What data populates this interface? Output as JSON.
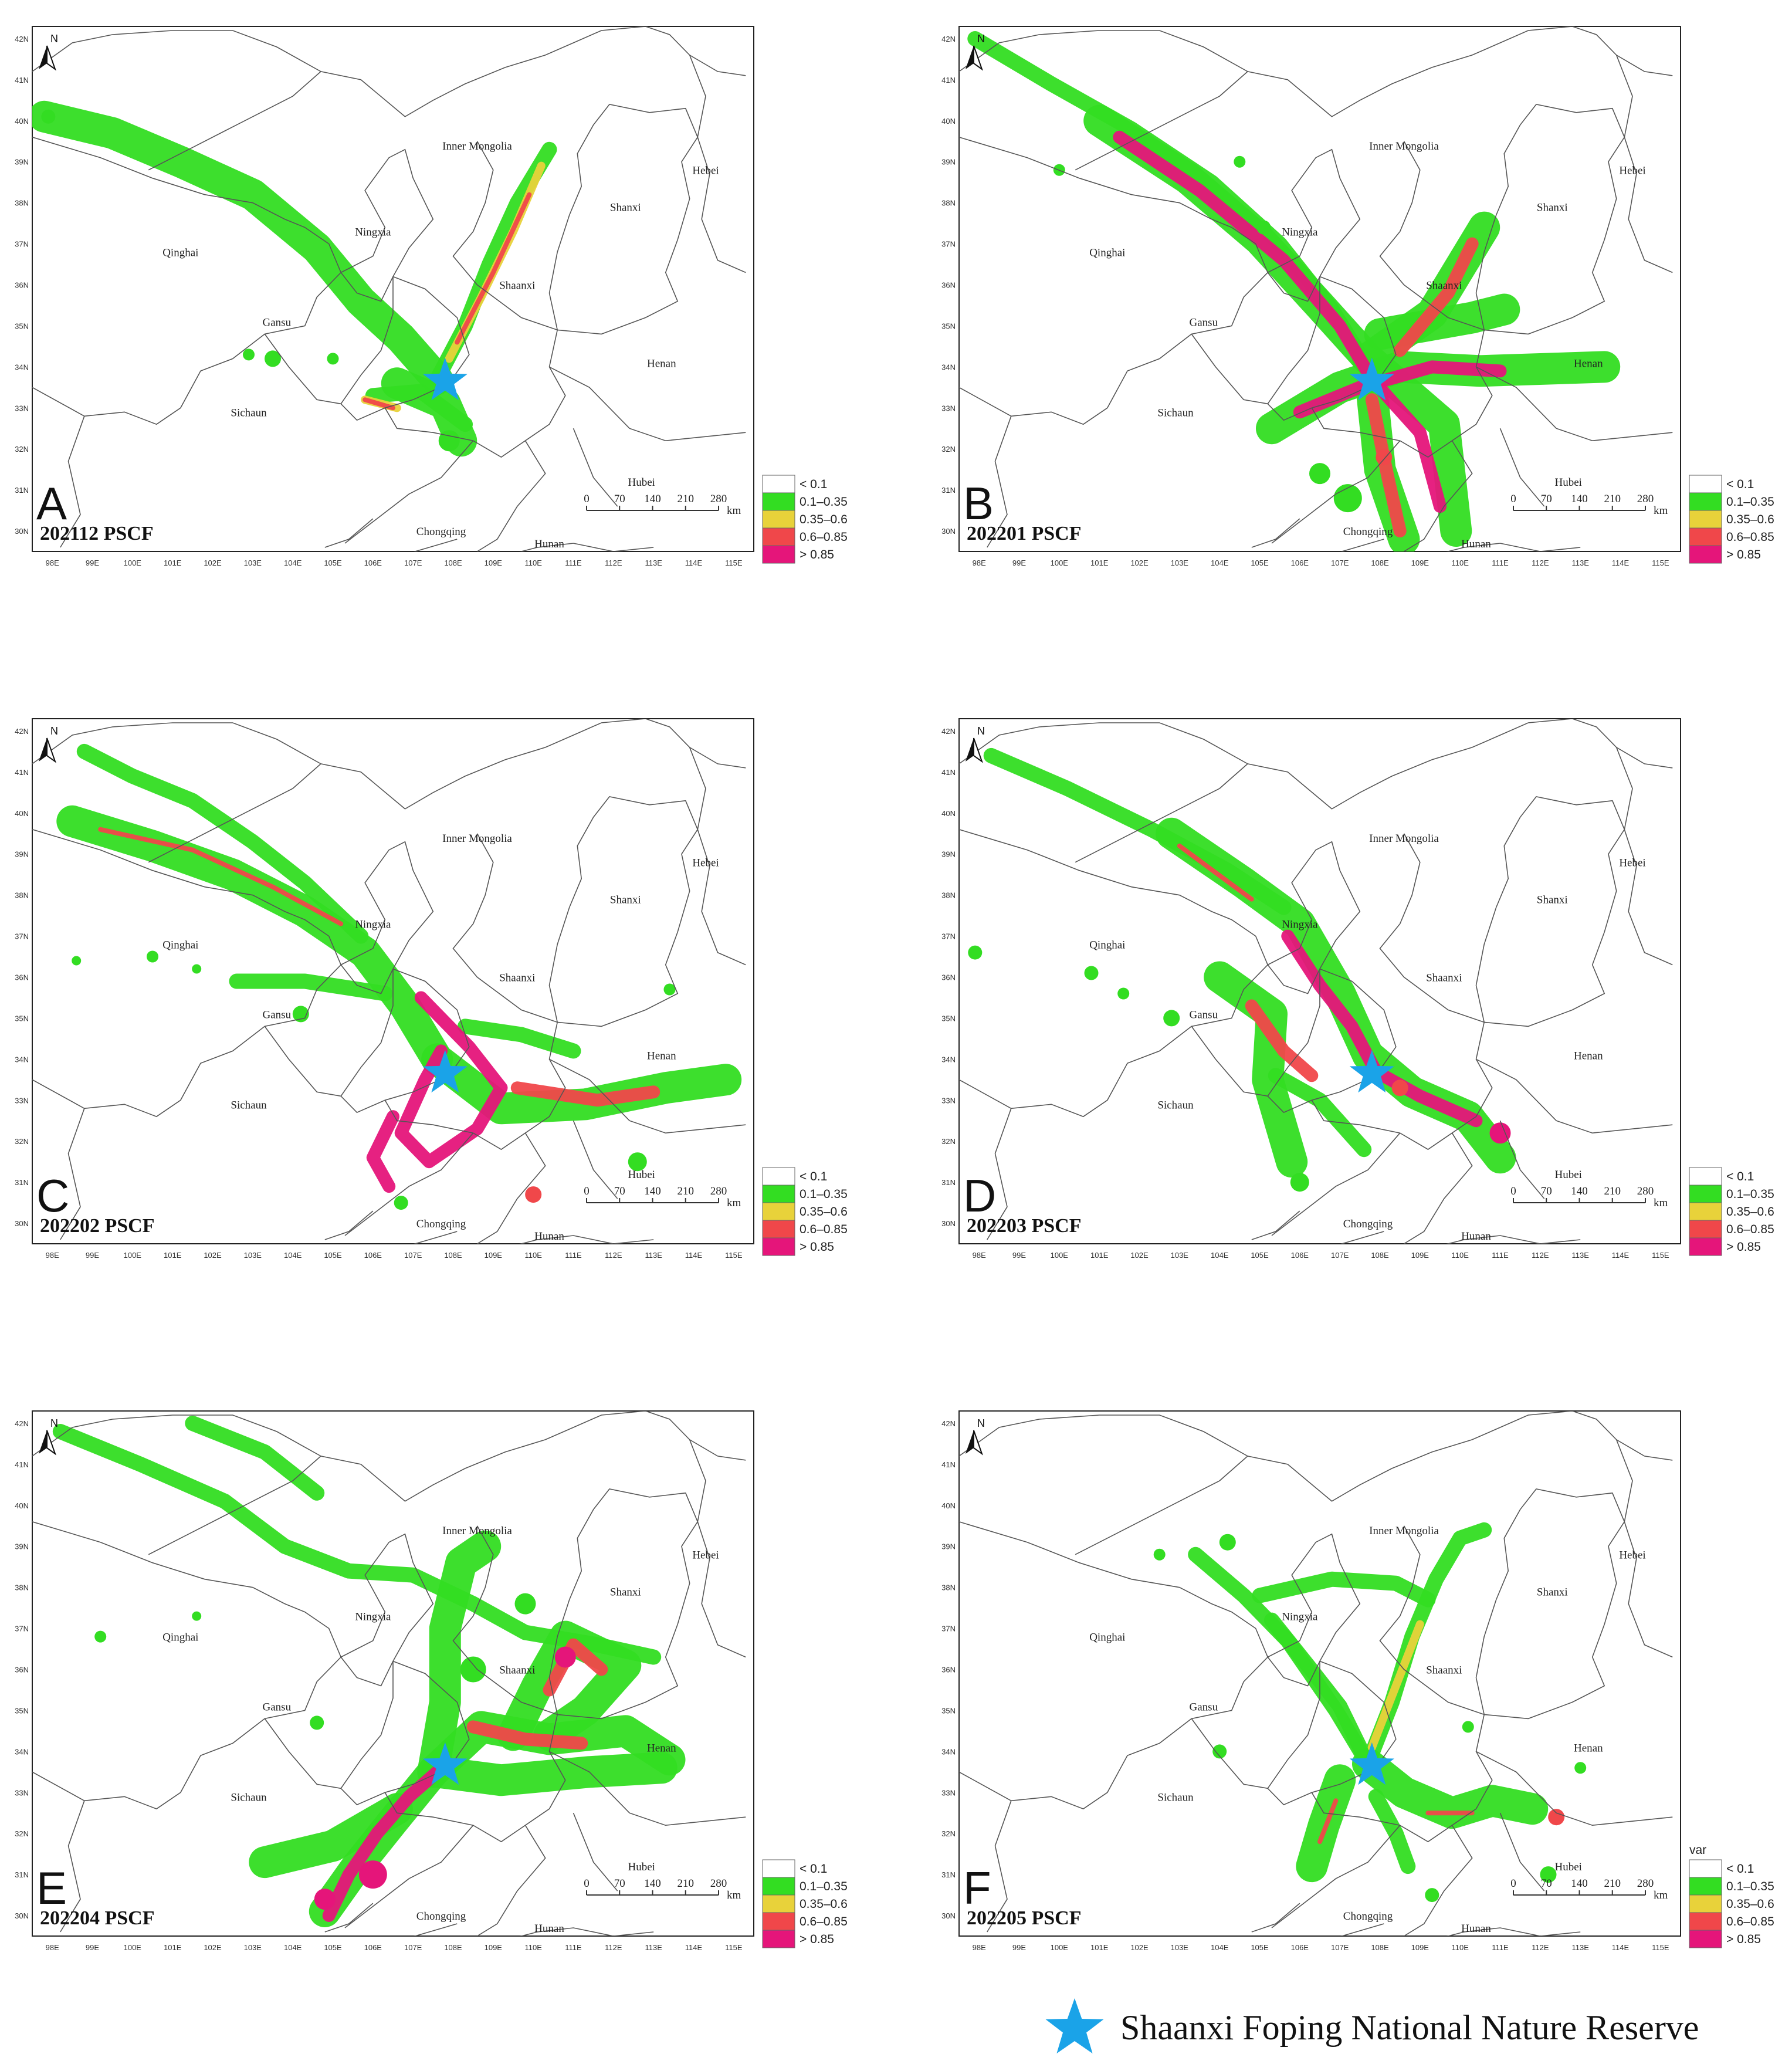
{
  "lon_ticks": [
    "98E",
    "99E",
    "100E",
    "101E",
    "102E",
    "103E",
    "104E",
    "105E",
    "106E",
    "107E",
    "108E",
    "109E",
    "110E",
    "111E",
    "112E",
    "113E",
    "114E",
    "115E"
  ],
  "lat_ticks": [
    "42N",
    "41N",
    "40N",
    "39N",
    "38N",
    "37N",
    "36N",
    "35N",
    "34N",
    "33N",
    "32N",
    "31N",
    "30N"
  ],
  "regions": {
    "inner_mongolia": "Inner Mongolia",
    "hebei": "Hebei",
    "shanxi": "Shanxi",
    "ningxia": "Ningxia",
    "qinghai": "Qinghai",
    "shaanxi": "Shaanxi",
    "gansu": "Gansu",
    "henan": "Henan",
    "sichuan": "Sichaun",
    "hubei": "Hubei",
    "chongqing": "Chongqing",
    "hunan": "Hunan"
  },
  "legend": {
    "items": [
      "< 0.1",
      "0.1–0.35",
      "0.35–0.6",
      "0.6–0.85",
      "> 0.85"
    ],
    "colors": [
      "#ffffff",
      "#33dd22",
      "#e8d23a",
      "#f0474a",
      "#e5157a"
    ]
  },
  "scale_bar": {
    "ticks": [
      "0",
      "70",
      "140",
      "210",
      "280"
    ],
    "unit": "km"
  },
  "north_label": "N",
  "panels": [
    {
      "letter": "A",
      "label": "202112 PSCF"
    },
    {
      "letter": "B",
      "label": "202201 PSCF"
    },
    {
      "letter": "C",
      "label": "202202 PSCF"
    },
    {
      "letter": "D",
      "label": "202203 PSCF"
    },
    {
      "letter": "E",
      "label": "202204 PSCF"
    },
    {
      "letter": "F",
      "label": "202205 PSCF",
      "legend_title": "var"
    }
  ],
  "site_marker": {
    "label": "Shaanxi Foping National Nature Reserve",
    "color": "#1aa3e8"
  }
}
